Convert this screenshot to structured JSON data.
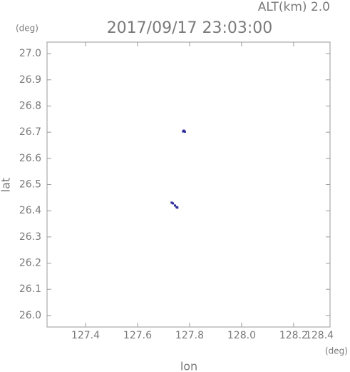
{
  "chart_data": {
    "type": "scatter",
    "title": "2017/09/17 23:03:00",
    "subtitle": "ALT(km) 2.0",
    "x_label": "lon",
    "y_label": "lat",
    "x_unit": "(deg)",
    "y_unit": "(deg)",
    "series": [
      {
        "color": "#2a2a9a",
        "x": [
          127.775,
          127.778,
          127.782,
          127.731,
          127.736,
          127.744,
          127.75,
          127.753
        ],
        "values": [
          26.703,
          26.706,
          26.702,
          26.431,
          26.428,
          26.42,
          26.414,
          26.412
        ]
      }
    ],
    "xlim": [
      127.252,
      128.34
    ],
    "ylim": [
      25.956,
      27.044
    ],
    "xticks": [
      127.4,
      127.6,
      127.8,
      {
        "value": 128.0,
        "label": "128.0"
      },
      128.2,
      128.4
    ],
    "yticks": [
      {
        "value": 26.0,
        "label": "26.0"
      },
      26.1,
      26.2,
      26.3,
      26.4,
      26.5,
      26.6,
      26.7,
      26.8,
      26.9,
      {
        "value": 27.0,
        "label": "27.0"
      }
    ]
  }
}
